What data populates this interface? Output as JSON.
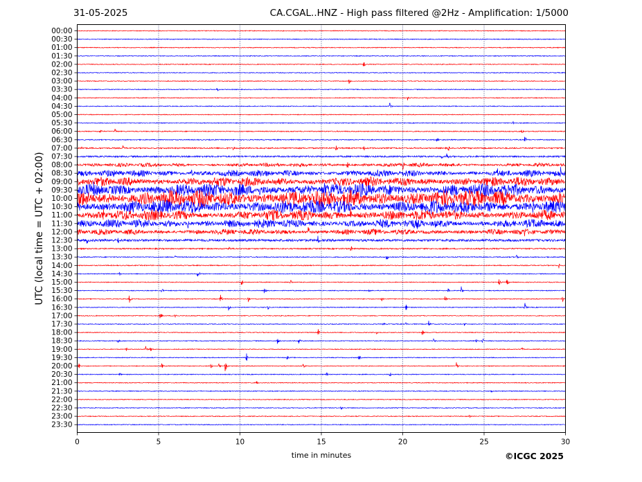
{
  "header": {
    "date": "31-05-2025",
    "title": "CA.CGAL..HNZ - High pass filtered @2Hz - Amplification: 1/5000"
  },
  "footer": {
    "copyright": "©ICGC 2025"
  },
  "colors": {
    "trace_a": "#ff0000",
    "trace_b": "#0000ff",
    "grid": "#1a1a66"
  },
  "chart_data": {
    "type": "line",
    "subtype": "helicorder",
    "xlabel": "time in minutes",
    "ylabel": "UTC (local time = UTC + 02:00)",
    "xlim": [
      0,
      30
    ],
    "x_ticks": [
      0,
      5,
      10,
      15,
      20,
      25,
      30
    ],
    "x_tick_labels": [
      "0",
      "5",
      "10",
      "15",
      "20",
      "25",
      "30"
    ],
    "vertical_grid": [
      5,
      10,
      15,
      20,
      25
    ],
    "rows": [
      "00:00",
      "00:30",
      "01:00",
      "01:30",
      "02:00",
      "02:30",
      "03:00",
      "03:30",
      "04:00",
      "04:30",
      "05:00",
      "05:30",
      "06:00",
      "06:30",
      "07:00",
      "07:30",
      "08:00",
      "08:30",
      "09:00",
      "09:30",
      "10:00",
      "10:30",
      "11:00",
      "11:30",
      "12:00",
      "12:30",
      "13:00",
      "13:30",
      "14:00",
      "14:30",
      "15:00",
      "15:30",
      "16:00",
      "16:30",
      "17:00",
      "17:30",
      "18:00",
      "18:30",
      "19:00",
      "19:30",
      "20:00",
      "20:30",
      "21:00",
      "21:30",
      "22:00",
      "22:30",
      "23:00",
      "23:30"
    ],
    "row_colors": "alternating red / blue starting with red",
    "noise_amplitude": [
      0.05,
      0.05,
      0.05,
      0.05,
      0.05,
      0.05,
      0.05,
      0.05,
      0.05,
      0.05,
      0.05,
      0.05,
      0.06,
      0.06,
      0.08,
      0.1,
      0.2,
      0.35,
      0.5,
      0.7,
      0.9,
      0.75,
      0.55,
      0.45,
      0.3,
      0.15,
      0.08,
      0.06,
      0.06,
      0.05,
      0.05,
      0.05,
      0.05,
      0.05,
      0.05,
      0.05,
      0.05,
      0.05,
      0.05,
      0.05,
      0.05,
      0.05,
      0.05,
      0.05,
      0.05,
      0.05,
      0.05,
      0.05
    ],
    "events": [
      {
        "row": "02:00",
        "minute": 17.6,
        "amplitude": 0.6
      },
      {
        "row": "03:00",
        "minute": 16.7,
        "amplitude": 0.4
      },
      {
        "row": "03:30",
        "minute": 8.6,
        "amplitude": 0.35
      },
      {
        "row": "04:00",
        "minute": 20.3,
        "amplitude": 0.4
      },
      {
        "row": "04:30",
        "minute": 19.2,
        "amplitude": 0.6
      },
      {
        "row": "05:30",
        "minute": 26.8,
        "amplitude": 0.4
      },
      {
        "row": "06:00",
        "minute": 1.4,
        "amplitude": 0.5
      },
      {
        "row": "06:00",
        "minute": 2.3,
        "amplitude": 0.6
      },
      {
        "row": "06:00",
        "minute": 27.3,
        "amplitude": 0.5
      },
      {
        "row": "06:30",
        "minute": 22.1,
        "amplitude": 0.4
      },
      {
        "row": "06:30",
        "minute": 27.5,
        "amplitude": 0.5
      },
      {
        "row": "07:00",
        "minute": 0.3,
        "amplitude": 0.3
      },
      {
        "row": "07:00",
        "minute": 2.8,
        "amplitude": 0.4
      },
      {
        "row": "07:00",
        "minute": 9.6,
        "amplitude": 0.5
      },
      {
        "row": "07:00",
        "minute": 15.9,
        "amplitude": 0.5
      },
      {
        "row": "07:00",
        "minute": 17.6,
        "amplitude": 0.5
      },
      {
        "row": "07:00",
        "minute": 22.8,
        "amplitude": 0.5
      },
      {
        "row": "07:30",
        "minute": 22.4,
        "amplitude": 0.3
      },
      {
        "row": "07:30",
        "minute": 22.7,
        "amplitude": 0.7
      },
      {
        "row": "08:00",
        "minute": 16.6,
        "amplitude": 0.6
      },
      {
        "row": "08:00",
        "minute": 20.0,
        "amplitude": 0.8
      },
      {
        "row": "08:30",
        "minute": 7.0,
        "amplitude": 0.8
      },
      {
        "row": "08:30",
        "minute": 25.8,
        "amplitude": 1.0
      },
      {
        "row": "08:30",
        "minute": 29.7,
        "amplitude": 1.0
      },
      {
        "row": "09:30",
        "minute": 1.0,
        "amplitude": 1.2
      },
      {
        "row": "09:30",
        "minute": 11.2,
        "amplitude": 1.0
      },
      {
        "row": "09:30",
        "minute": 15.2,
        "amplitude": 1.2
      },
      {
        "row": "10:00",
        "minute": 15.3,
        "amplitude": 1.2
      },
      {
        "row": "10:00",
        "minute": 26.0,
        "amplitude": 1.0
      },
      {
        "row": "10:30",
        "minute": 28.0,
        "amplitude": 1.4
      },
      {
        "row": "11:00",
        "minute": 1.6,
        "amplitude": 1.0
      },
      {
        "row": "11:00",
        "minute": 16.8,
        "amplitude": 1.3
      },
      {
        "row": "11:30",
        "minute": 6.8,
        "amplitude": 1.0
      },
      {
        "row": "11:30",
        "minute": 10.5,
        "amplitude": 0.9
      },
      {
        "row": "11:30",
        "minute": 12.8,
        "amplitude": 0.9
      },
      {
        "row": "11:30",
        "minute": 20.9,
        "amplitude": 0.9
      },
      {
        "row": "11:30",
        "minute": 22.0,
        "amplitude": 0.8
      },
      {
        "row": "12:00",
        "minute": 14.2,
        "amplitude": 0.9
      },
      {
        "row": "12:00",
        "minute": 27.5,
        "amplitude": 1.0
      },
      {
        "row": "12:30",
        "minute": 0.6,
        "amplitude": 0.6
      },
      {
        "row": "12:30",
        "minute": 2.5,
        "amplitude": 0.6
      },
      {
        "row": "12:30",
        "minute": 9.6,
        "amplitude": 0.4
      },
      {
        "row": "12:30",
        "minute": 14.8,
        "amplitude": 0.8
      },
      {
        "row": "13:00",
        "minute": 9.3,
        "amplitude": 0.4
      },
      {
        "row": "13:00",
        "minute": 16.8,
        "amplitude": 0.6
      },
      {
        "row": "13:30",
        "minute": 6.0,
        "amplitude": 0.5
      },
      {
        "row": "13:30",
        "minute": 19.0,
        "amplitude": 0.6
      },
      {
        "row": "13:30",
        "minute": 27.0,
        "amplitude": 0.5
      },
      {
        "row": "14:00",
        "minute": 29.6,
        "amplitude": 0.5
      },
      {
        "row": "14:30",
        "minute": 2.6,
        "amplitude": 0.3
      },
      {
        "row": "14:30",
        "minute": 7.4,
        "amplitude": 0.8
      },
      {
        "row": "15:00",
        "minute": 10.1,
        "amplitude": 0.6
      },
      {
        "row": "15:00",
        "minute": 13.1,
        "amplitude": 0.5
      },
      {
        "row": "15:00",
        "minute": 25.9,
        "amplitude": 0.6
      },
      {
        "row": "15:00",
        "minute": 26.4,
        "amplitude": 0.6
      },
      {
        "row": "15:30",
        "minute": 5.2,
        "amplitude": 0.4
      },
      {
        "row": "15:30",
        "minute": 11.5,
        "amplitude": 0.5
      },
      {
        "row": "15:30",
        "minute": 17.9,
        "amplitude": 0.4
      },
      {
        "row": "15:30",
        "minute": 22.8,
        "amplitude": 0.4
      },
      {
        "row": "15:30",
        "minute": 23.6,
        "amplitude": 0.6
      },
      {
        "row": "16:00",
        "minute": 3.2,
        "amplitude": 0.6
      },
      {
        "row": "16:00",
        "minute": 8.8,
        "amplitude": 0.7
      },
      {
        "row": "16:00",
        "minute": 10.5,
        "amplitude": 0.4
      },
      {
        "row": "16:00",
        "minute": 18.7,
        "amplitude": 0.5
      },
      {
        "row": "16:00",
        "minute": 22.6,
        "amplitude": 0.4
      },
      {
        "row": "16:00",
        "minute": 29.8,
        "amplitude": 0.5
      },
      {
        "row": "16:30",
        "minute": 9.3,
        "amplitude": 0.4
      },
      {
        "row": "16:30",
        "minute": 11.7,
        "amplitude": 0.4
      },
      {
        "row": "16:30",
        "minute": 20.2,
        "amplitude": 0.5
      },
      {
        "row": "16:30",
        "minute": 27.5,
        "amplitude": 0.7
      },
      {
        "row": "17:00",
        "minute": 5.1,
        "amplitude": 0.6
      },
      {
        "row": "17:00",
        "minute": 6.0,
        "amplitude": 0.5
      },
      {
        "row": "17:30",
        "minute": 18.8,
        "amplitude": 0.3
      },
      {
        "row": "17:30",
        "minute": 20.2,
        "amplitude": 0.3
      },
      {
        "row": "17:30",
        "minute": 21.6,
        "amplitude": 0.5
      },
      {
        "row": "17:30",
        "minute": 23.8,
        "amplitude": 0.3
      },
      {
        "row": "18:00",
        "minute": 14.8,
        "amplitude": 0.5
      },
      {
        "row": "18:00",
        "minute": 18.4,
        "amplitude": 0.4
      },
      {
        "row": "18:00",
        "minute": 21.2,
        "amplitude": 0.5
      },
      {
        "row": "18:30",
        "minute": 2.5,
        "amplitude": 0.3
      },
      {
        "row": "18:30",
        "minute": 12.3,
        "amplitude": 0.5
      },
      {
        "row": "18:30",
        "minute": 13.6,
        "amplitude": 0.6
      },
      {
        "row": "18:30",
        "minute": 21.9,
        "amplitude": 0.4
      },
      {
        "row": "18:30",
        "minute": 24.5,
        "amplitude": 0.5
      },
      {
        "row": "18:30",
        "minute": 24.9,
        "amplitude": 0.4
      },
      {
        "row": "19:00",
        "minute": 3.0,
        "amplitude": 0.3
      },
      {
        "row": "19:00",
        "minute": 4.2,
        "amplitude": 0.5
      },
      {
        "row": "19:00",
        "minute": 4.5,
        "amplitude": 0.4
      },
      {
        "row": "19:00",
        "minute": 27.3,
        "amplitude": 0.3
      },
      {
        "row": "19:30",
        "minute": 10.4,
        "amplitude": 0.6
      },
      {
        "row": "19:30",
        "minute": 12.9,
        "amplitude": 0.3
      },
      {
        "row": "19:30",
        "minute": 17.3,
        "amplitude": 0.5
      },
      {
        "row": "20:00",
        "minute": 0.1,
        "amplitude": 0.4
      },
      {
        "row": "20:00",
        "minute": 5.2,
        "amplitude": 0.4
      },
      {
        "row": "20:00",
        "minute": 8.2,
        "amplitude": 0.4
      },
      {
        "row": "20:00",
        "minute": 8.7,
        "amplitude": 0.4
      },
      {
        "row": "20:00",
        "minute": 9.1,
        "amplitude": 1.0
      },
      {
        "row": "20:00",
        "minute": 13.9,
        "amplitude": 0.6
      },
      {
        "row": "20:00",
        "minute": 23.3,
        "amplitude": 0.5
      },
      {
        "row": "20:30",
        "minute": 2.6,
        "amplitude": 0.3
      },
      {
        "row": "20:30",
        "minute": 15.3,
        "amplitude": 0.4
      },
      {
        "row": "20:30",
        "minute": 19.2,
        "amplitude": 0.5
      },
      {
        "row": "21:00",
        "minute": 11.0,
        "amplitude": 0.4
      },
      {
        "row": "21:30",
        "minute": 25.4,
        "amplitude": 0.4
      },
      {
        "row": "22:30",
        "minute": 16.2,
        "amplitude": 0.4
      },
      {
        "row": "23:00",
        "minute": 24.1,
        "amplitude": 0.2
      }
    ]
  }
}
